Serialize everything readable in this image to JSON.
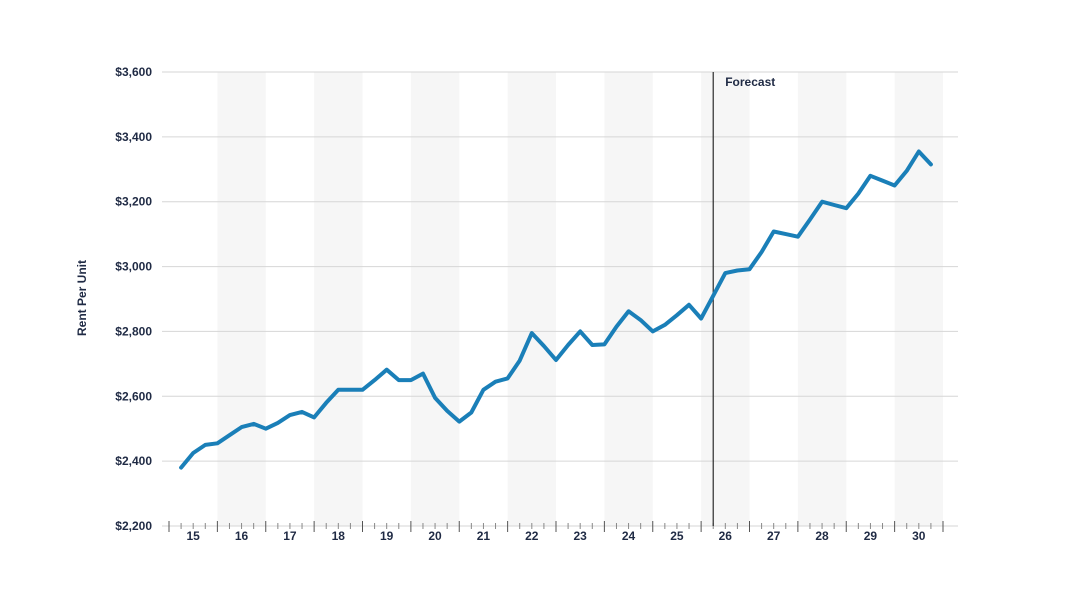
{
  "chart_data": {
    "type": "line",
    "ylabel": "Rent Per Unit",
    "xlabel": "",
    "title": "",
    "ylim": [
      2200,
      3600
    ],
    "ytick_values": [
      2200,
      2400,
      2600,
      2800,
      3000,
      3200,
      3400,
      3600
    ],
    "ytick_labels": [
      "$2,200",
      "$2,400",
      "$2,600",
      "$2,800",
      "$3,000",
      "$3,200",
      "$3,400",
      "$3,600"
    ],
    "xlim": [
      2014.5,
      2030.5
    ],
    "xtick_values": [
      2015,
      2016,
      2017,
      2018,
      2019,
      2020,
      2021,
      2022,
      2023,
      2024,
      2025,
      2026,
      2027,
      2028,
      2029,
      2030
    ],
    "xtick_labels": [
      "15",
      "16",
      "17",
      "18",
      "19",
      "20",
      "21",
      "22",
      "23",
      "24",
      "25",
      "26",
      "27",
      "28",
      "29",
      "30"
    ],
    "grid": "horizontal",
    "band_years": [
      2016,
      2018,
      2020,
      2022,
      2024,
      2026,
      2028,
      2030
    ],
    "forecast": {
      "x": 2025.75,
      "label": "Forecast"
    },
    "colors": {
      "line": "#1a7fb8",
      "band": "#f6f6f6",
      "grid": "#d6d6d6",
      "text": "#1f2a44",
      "forecast_line": "#2b2b2b"
    },
    "series": [
      {
        "x": [
          2014.75,
          2015.0,
          2015.25,
          2015.5,
          2015.75,
          2016.0,
          2016.25,
          2016.5,
          2016.75,
          2017.0,
          2017.25,
          2017.5,
          2017.75,
          2018.0,
          2018.25,
          2018.5,
          2018.75,
          2019.0,
          2019.25,
          2019.5,
          2019.75,
          2020.0,
          2020.25,
          2020.5,
          2020.75,
          2021.0,
          2021.25,
          2021.5,
          2021.75,
          2022.0,
          2022.25,
          2022.5,
          2022.75,
          2023.0,
          2023.25,
          2023.5,
          2023.75,
          2024.0,
          2024.25,
          2024.5,
          2024.75,
          2025.0,
          2025.25,
          2025.5,
          2025.75,
          2026.0,
          2026.25,
          2026.5,
          2026.75,
          2027.0,
          2027.25,
          2027.5,
          2027.75,
          2028.0,
          2028.25,
          2028.5,
          2028.75,
          2029.0,
          2029.25,
          2029.5,
          2029.75,
          2030.0,
          2030.25
        ],
        "values": [
          2380,
          2425,
          2450,
          2455,
          2480,
          2505,
          2515,
          2500,
          2518,
          2542,
          2552,
          2535,
          2580,
          2620,
          2620,
          2620,
          2650,
          2682,
          2650,
          2650,
          2670,
          2595,
          2555,
          2522,
          2550,
          2620,
          2645,
          2655,
          2710,
          2795,
          2755,
          2712,
          2758,
          2800,
          2758,
          2760,
          2815,
          2862,
          2835,
          2800,
          2820,
          2850,
          2882,
          2840,
          2910,
          2980,
          2988,
          2992,
          3045,
          3108,
          3100,
          3092,
          3145,
          3200,
          3190,
          3180,
          3225,
          3280,
          3265,
          3250,
          3295,
          3355,
          3315
        ]
      }
    ]
  }
}
